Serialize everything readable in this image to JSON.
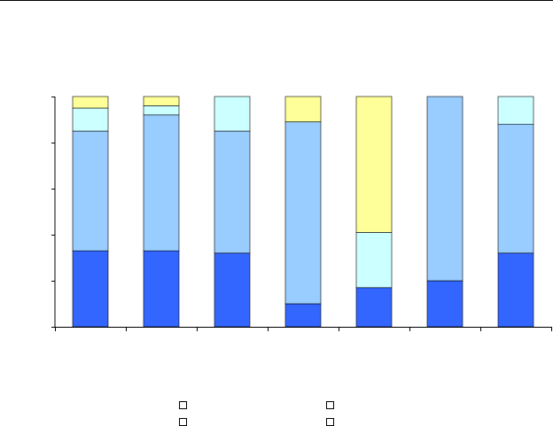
{
  "chart_data": {
    "type": "bar",
    "stacked": true,
    "title": "",
    "xlabel": "",
    "ylabel": "",
    "ylim": [
      0,
      1
    ],
    "y_ticks": [
      0,
      0.2,
      0.4,
      0.6,
      0.8,
      1.0
    ],
    "grid": false,
    "legend": "bottom",
    "categories": [
      "",
      "",
      "",
      "",
      "",
      "",
      ""
    ],
    "series": [
      {
        "color": "#3366ff",
        "values": [
          0.33,
          0.33,
          0.32,
          0.1,
          0.17,
          0.2,
          0.32
        ]
      },
      {
        "color": "#99ccff",
        "values": [
          0.52,
          0.59,
          0.53,
          0.79,
          0.0,
          0.8,
          0.56
        ]
      },
      {
        "color": "#ccffff",
        "values": [
          0.1,
          0.04,
          0.15,
          0.0,
          0.24,
          0.0,
          0.12
        ]
      },
      {
        "color": "#ffff99",
        "values": [
          0.05,
          0.04,
          0.0,
          0.11,
          0.59,
          0.0,
          0.0
        ]
      }
    ]
  }
}
